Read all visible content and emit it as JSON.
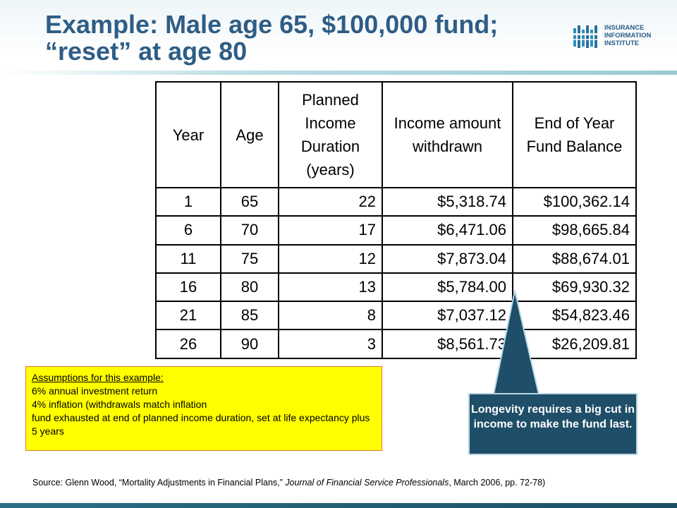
{
  "slide": {
    "title_line1": "Example: Male age 65, $100,000 fund;",
    "title_line2": "“reset” at age 80"
  },
  "logo": {
    "line1": "INSURANCE",
    "line2": "INFORMATION",
    "line3": "INSTITUTE",
    "icon": "iii-logo-icon"
  },
  "table": {
    "headers": [
      "Year",
      "Age",
      "Planned Income Duration (years)",
      "Income amount withdrawn",
      "End of Year Fund Balance"
    ],
    "rows": [
      [
        "1",
        "65",
        "22",
        "$5,318.74",
        "$100,362.14"
      ],
      [
        "6",
        "70",
        "17",
        "$6,471.06",
        "$98,665.84"
      ],
      [
        "11",
        "75",
        "12",
        "$7,873.04",
        "$88,674.01"
      ],
      [
        "16",
        "80",
        "13",
        "$5,784.00",
        "$69,930.32"
      ],
      [
        "21",
        "85",
        "8",
        "$7,037.12",
        "$54,823.46"
      ],
      [
        "26",
        "90",
        "3",
        "$8,561.73",
        "$26,209.81"
      ]
    ]
  },
  "assumptions": {
    "heading": "Assumptions for this example:",
    "lines": [
      "6% annual investment return",
      "4% inflation (withdrawals match inflation",
      "fund exhausted at end of planned income duration, set at life expectancy plus 5 years"
    ]
  },
  "callout": {
    "text": "Longevity requires a big cut in income to make the fund last."
  },
  "source": {
    "prefix": "Source: Glenn Wood, “Mortality Adjustments in Financial Plans,” ",
    "journal": "Journal of Financial Service Professionals",
    "suffix": ", March 2006, pp. 72-78)"
  },
  "colors": {
    "title": "#2e5d86",
    "callout_bg": "#1e4e68",
    "assumptions_bg": "#ffff00"
  }
}
